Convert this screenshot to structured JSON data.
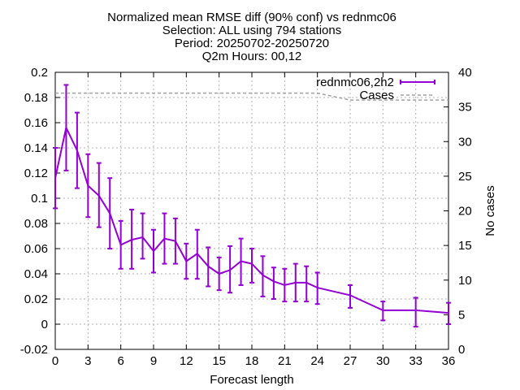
{
  "chart_data": {
    "type": "line",
    "title_lines": [
      "Normalized mean RMSE diff (90% conf) vs rednmc06",
      "Selection: ALL using    794 stations",
      "Period: 20250702-20250720",
      "Q2m   Hours: 00,12"
    ],
    "xlabel": "Forecast length",
    "ylabel": "",
    "y2label": "No cases",
    "xlim": [
      0,
      36
    ],
    "ylim": [
      -0.02,
      0.2
    ],
    "y2lim": [
      0,
      40
    ],
    "grid": true,
    "legend_position": "top-right",
    "x_ticks": [
      "0",
      "3",
      "6",
      "9",
      "12",
      "15",
      "18",
      "21",
      "24",
      "27",
      "30",
      "33",
      "36"
    ],
    "y_ticks": [
      "-0.02",
      "0",
      "0.02",
      "0.04",
      "0.06",
      "0.08",
      "0.1",
      "0.12",
      "0.14",
      "0.16",
      "0.18",
      "0.2"
    ],
    "y2_ticks": [
      "0",
      "5",
      "10",
      "15",
      "20",
      "25",
      "30",
      "35",
      "40"
    ],
    "series": [
      {
        "name": "rednmc06,2h2",
        "color": "#9400d3",
        "axis": "y",
        "errorbars": true,
        "x": [
          0,
          1,
          2,
          3,
          4,
          5,
          6,
          7,
          8,
          9,
          10,
          11,
          12,
          13,
          14,
          15,
          16,
          17,
          18,
          19,
          20,
          21,
          22,
          23,
          24,
          27,
          30,
          33,
          36
        ],
        "y": [
          0.116,
          0.156,
          0.138,
          0.11,
          0.102,
          0.088,
          0.063,
          0.067,
          0.069,
          0.058,
          0.068,
          0.066,
          0.05,
          0.056,
          0.046,
          0.04,
          0.043,
          0.05,
          0.048,
          0.039,
          0.034,
          0.031,
          0.033,
          0.033,
          0.029,
          0.023,
          0.011,
          0.011,
          0.009
        ],
        "ylow": [
          0.092,
          0.122,
          0.108,
          0.085,
          0.077,
          0.06,
          0.044,
          0.044,
          0.052,
          0.041,
          0.048,
          0.048,
          0.036,
          0.036,
          0.03,
          0.027,
          0.025,
          0.031,
          0.033,
          0.022,
          0.02,
          0.018,
          0.018,
          0.018,
          0.016,
          0.013,
          0.003,
          -0.002,
          0.0
        ],
        "yhigh": [
          0.14,
          0.19,
          0.168,
          0.135,
          0.128,
          0.116,
          0.082,
          0.091,
          0.088,
          0.075,
          0.088,
          0.084,
          0.064,
          0.075,
          0.061,
          0.053,
          0.062,
          0.068,
          0.06,
          0.054,
          0.045,
          0.044,
          0.048,
          0.046,
          0.041,
          0.031,
          0.018,
          0.021,
          0.017
        ]
      },
      {
        "name": "Cases",
        "color": "#a0a0a0",
        "axis": "y2",
        "dashed": true,
        "x": [
          0,
          24,
          27,
          36
        ],
        "y": [
          37,
          37,
          36,
          36
        ]
      }
    ]
  }
}
